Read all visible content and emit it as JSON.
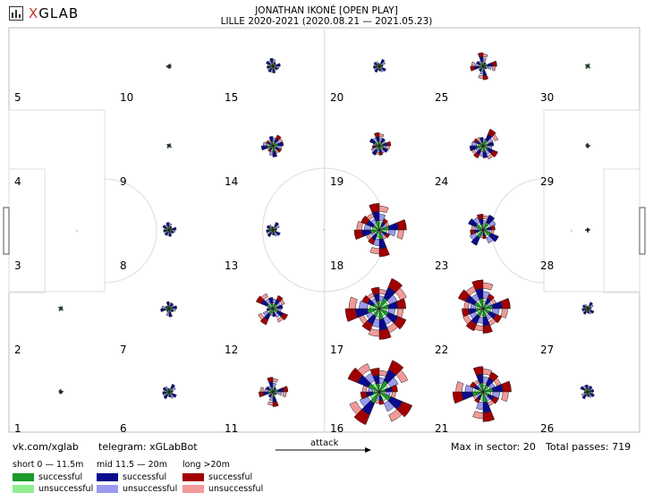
{
  "brand": {
    "logo_text_x": "X",
    "logo_text_rest": "GLAB"
  },
  "header": {
    "title": "JONATHAN IKONÉ [OPEN PLAY]",
    "subtitle": "LILLE 2020-2021 (2020.08.21 — 2021.05.23)"
  },
  "footer": {
    "site": "vk.com/xglab",
    "telegram": "telegram: xGLabBot",
    "attack_label": "attack",
    "max_in_sector": "Max in sector: 20",
    "total_passes": "Total passes: 719"
  },
  "legend": {
    "short": {
      "title": "short 0 — 11.5m",
      "successful": "successful",
      "unsuccessful": "unsuccessful"
    },
    "mid": {
      "title": "mid 11.5 — 20m",
      "successful": "successful",
      "unsuccessful": "unsuccessful"
    },
    "long": {
      "title": "long >20m",
      "successful": "successful",
      "unsuccessful": "unsuccessful"
    }
  },
  "colors": {
    "short_successful": "#1a9a2a",
    "short_unsuccessful": "#90ee90",
    "mid_successful": "#0a0a8c",
    "mid_unsuccessful": "#9a9af0",
    "long_successful": "#a00000",
    "long_unsuccessful": "#f29a9a"
  },
  "chart_data": {
    "type": "polar-rose-grid",
    "max_in_sector": 20,
    "total_passes": 719,
    "zones": [
      {
        "id": 1,
        "label": "1",
        "col": 0,
        "row": 4,
        "size": 0.06
      },
      {
        "id": 2,
        "label": "2",
        "col": 0,
        "row": 3,
        "size": 0.08
      },
      {
        "id": 3,
        "label": "3",
        "col": 0,
        "row": 2,
        "size": 0.0
      },
      {
        "id": 4,
        "label": "4",
        "col": 0,
        "row": 1,
        "size": 0.0
      },
      {
        "id": 5,
        "label": "5",
        "col": 0,
        "row": 0,
        "size": 0.0
      },
      {
        "id": 6,
        "label": "6",
        "col": 1,
        "row": 4,
        "size": 0.22
      },
      {
        "id": 7,
        "label": "7",
        "col": 1,
        "row": 3,
        "size": 0.22
      },
      {
        "id": 8,
        "label": "8",
        "col": 1,
        "row": 2,
        "size": 0.18
      },
      {
        "id": 9,
        "label": "9",
        "col": 1,
        "row": 1,
        "size": 0.08
      },
      {
        "id": 10,
        "label": "10",
        "col": 1,
        "row": 0,
        "size": 0.1
      },
      {
        "id": 11,
        "label": "11",
        "col": 2,
        "row": 4,
        "size": 0.32
      },
      {
        "id": 12,
        "label": "12",
        "col": 2,
        "row": 3,
        "size": 0.42
      },
      {
        "id": 13,
        "label": "13",
        "col": 2,
        "row": 2,
        "size": 0.22
      },
      {
        "id": 14,
        "label": "14",
        "col": 2,
        "row": 1,
        "size": 0.36
      },
      {
        "id": 15,
        "label": "15",
        "col": 2,
        "row": 0,
        "size": 0.2
      },
      {
        "id": 16,
        "label": "16",
        "col": 3,
        "row": 4,
        "size": 1.0
      },
      {
        "id": 17,
        "label": "17",
        "col": 3,
        "row": 3,
        "size": 1.0
      },
      {
        "id": 18,
        "label": "18",
        "col": 3,
        "row": 2,
        "size": 0.72
      },
      {
        "id": 19,
        "label": "19",
        "col": 3,
        "row": 1,
        "size": 0.32
      },
      {
        "id": 20,
        "label": "20",
        "col": 3,
        "row": 0,
        "size": 0.18
      },
      {
        "id": 21,
        "label": "21",
        "col": 4,
        "row": 4,
        "size": 0.82
      },
      {
        "id": 22,
        "label": "22",
        "col": 4,
        "row": 3,
        "size": 0.78
      },
      {
        "id": 23,
        "label": "23",
        "col": 4,
        "row": 2,
        "size": 0.62
      },
      {
        "id": 24,
        "label": "24",
        "col": 4,
        "row": 1,
        "size": 0.48
      },
      {
        "id": 25,
        "label": "25",
        "col": 4,
        "row": 0,
        "size": 0.28
      },
      {
        "id": 26,
        "label": "26",
        "col": 5,
        "row": 4,
        "size": 0.2
      },
      {
        "id": 27,
        "label": "27",
        "col": 5,
        "row": 3,
        "size": 0.16
      },
      {
        "id": 28,
        "label": "28",
        "col": 5,
        "row": 2,
        "size": 0.06
      },
      {
        "id": 29,
        "label": "29",
        "col": 5,
        "row": 1,
        "size": 0.06
      },
      {
        "id": 30,
        "label": "30",
        "col": 5,
        "row": 0,
        "size": 0.1
      }
    ]
  }
}
